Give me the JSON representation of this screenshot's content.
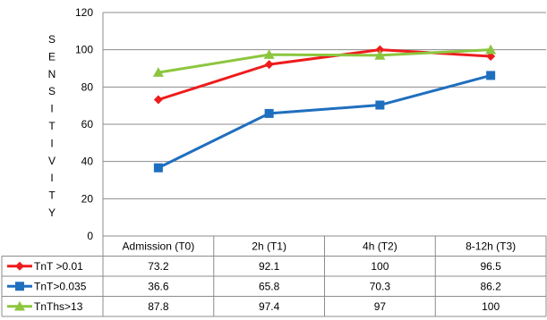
{
  "chart_data": {
    "type": "line",
    "ylabel": "SENSITIVITY",
    "ylim": [
      0,
      120
    ],
    "yticks": [
      0,
      20,
      40,
      60,
      80,
      100,
      120
    ],
    "grid": true,
    "legend": "data-table-below",
    "categories": [
      "Admission (T0)",
      "2h (T1)",
      "4h (T2)",
      "8-12h (T3)"
    ],
    "series": [
      {
        "name": "TnT >0.01",
        "color": "#ee1c1c",
        "marker": "diamond",
        "values": [
          73.2,
          92.1,
          100,
          96.5
        ],
        "labels": [
          "73.2",
          "92.1",
          "100",
          "96.5"
        ]
      },
      {
        "name": "TnT>0.035",
        "color": "#1f6fbf",
        "marker": "square",
        "values": [
          36.6,
          65.8,
          70.3,
          86.2
        ],
        "labels": [
          "36.6",
          "65.8",
          "70.3",
          "86.2"
        ]
      },
      {
        "name": "TnThs>13",
        "color": "#8cc63f",
        "marker": "triangle",
        "values": [
          87.8,
          97.4,
          97,
          100
        ],
        "labels": [
          "87.8",
          "97.4",
          "97",
          "100"
        ]
      }
    ]
  }
}
